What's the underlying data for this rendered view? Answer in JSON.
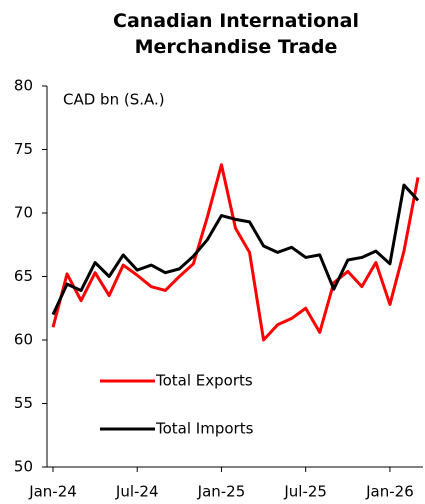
{
  "chart_data": {
    "type": "line",
    "title": "Canadian International Merchandise Trade",
    "annotation": "CAD bn (S.A.)",
    "categories": [
      "Jan-24",
      null,
      null,
      null,
      null,
      null,
      "Jul-24",
      null,
      null,
      null,
      null,
      null,
      "Jan-25",
      null,
      null,
      null,
      null,
      null,
      "Jul-25",
      null,
      null,
      null,
      null,
      null,
      "Jan-26",
      null,
      null
    ],
    "series": [
      {
        "name": "Total Exports",
        "color": "#ff0000",
        "values": [
          61.0,
          65.2,
          63.1,
          65.3,
          63.5,
          65.9,
          65.1,
          64.2,
          63.9,
          65.0,
          66.0,
          69.7,
          73.8,
          68.8,
          66.9,
          60.0,
          61.2,
          61.7,
          62.5,
          60.6,
          64.5,
          65.4,
          64.2,
          66.1,
          62.8,
          67.0,
          72.8
        ]
      },
      {
        "name": "Total Imports",
        "color": "#000000",
        "values": [
          62.0,
          64.4,
          63.9,
          66.1,
          65.0,
          66.7,
          65.5,
          65.9,
          65.3,
          65.6,
          66.6,
          67.9,
          69.8,
          69.5,
          69.3,
          67.4,
          66.9,
          67.3,
          66.5,
          66.7,
          64.0,
          66.3,
          66.5,
          67.0,
          66.0,
          72.2,
          71.0
        ]
      }
    ],
    "ylim": [
      50,
      80
    ],
    "yticks": [
      50,
      55,
      60,
      65,
      70,
      75,
      80
    ],
    "grid": false
  }
}
